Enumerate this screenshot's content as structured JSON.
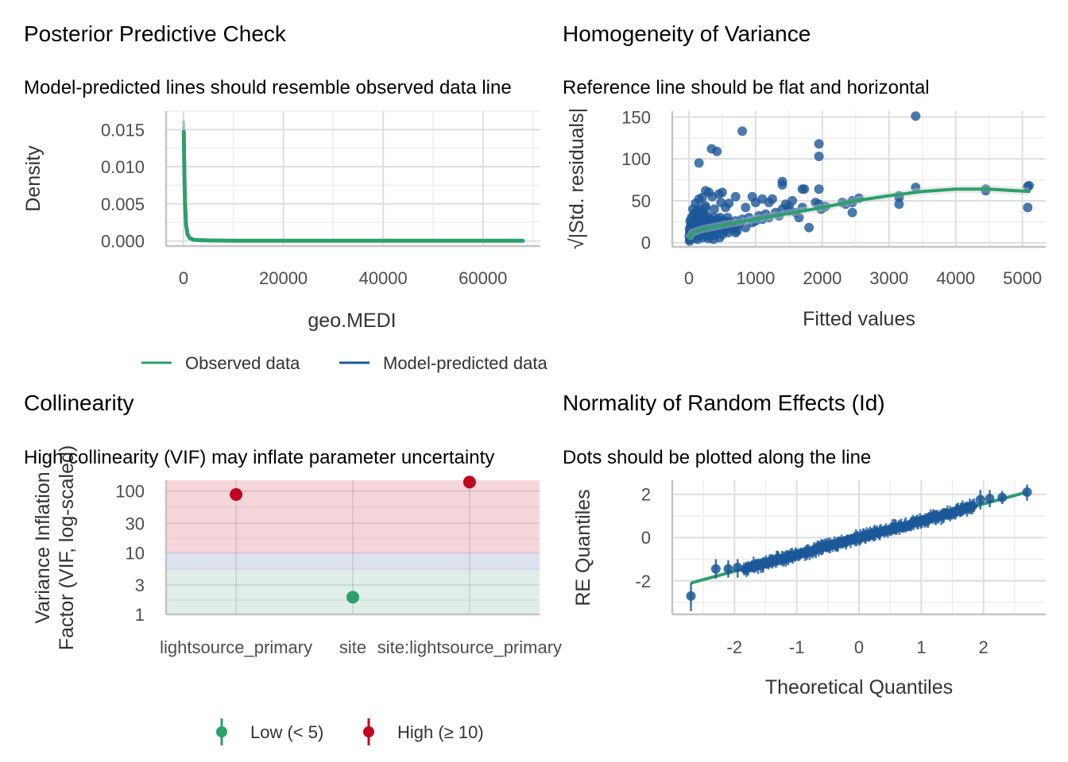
{
  "figure": {
    "colors": {
      "observed": "#2ca06b",
      "predicted": "#1b5898",
      "low": "#2ca06b",
      "moderate": "#1b5898",
      "high": "#c0061f",
      "band_high": "#f5d7db",
      "band_moderate": "#dde3ee",
      "band_low": "#dfefe7"
    }
  },
  "chart_data": [
    {
      "id": "ppc",
      "type": "line",
      "title": "Posterior Predictive Check",
      "subtitle": "Model-predicted lines should resemble observed data line",
      "xlabel": "geo.MEDI",
      "ylabel": "Density",
      "xlim": [
        -3500,
        71500
      ],
      "ylim": [
        -0.0007,
        0.0175
      ],
      "x_ticks": [
        0,
        20000,
        40000,
        60000
      ],
      "x_tick_labels": [
        "0",
        "20000",
        "40000",
        "60000"
      ],
      "y_ticks": [
        0.0,
        0.005,
        0.01,
        0.015
      ],
      "y_tick_labels": [
        "0.000",
        "0.005",
        "0.010",
        "0.015"
      ],
      "grid": true,
      "legend": {
        "position": "bottom",
        "entries": [
          "Observed data",
          "Model-predicted data"
        ]
      },
      "series": [
        {
          "name": "Observed data",
          "x": [
            0,
            50,
            100,
            200,
            300,
            500,
            800,
            1200,
            2000,
            3000,
            5000,
            10000,
            20000,
            40000,
            60000,
            68000
          ],
          "y": [
            0.0147,
            0.0147,
            0.012,
            0.008,
            0.005,
            0.0022,
            0.0009,
            0.0004,
            0.00015,
            0.0001,
            6e-05,
            3e-05,
            2e-05,
            2e-05,
            2e-05,
            2e-05
          ]
        },
        {
          "name": "Model-predicted data",
          "x": [
            0,
            50,
            100,
            200,
            300,
            500,
            800,
            1200,
            2000,
            3000,
            5000
          ],
          "y": [
            0.0162,
            0.0158,
            0.0125,
            0.0082,
            0.0051,
            0.0022,
            0.0009,
            0.0004,
            0.00015,
            0.0001,
            6e-05
          ]
        }
      ]
    },
    {
      "id": "homogeneity",
      "type": "scatter",
      "title": "Homogeneity of Variance",
      "subtitle": "Reference line should be flat and horizontal",
      "xlabel": "Fitted values",
      "ylabel": "√|Std. residuals|",
      "xlim": [
        -250,
        5350
      ],
      "ylim": [
        -5,
        157
      ],
      "x_ticks": [
        0,
        1000,
        2000,
        3000,
        4000,
        5000
      ],
      "x_tick_labels": [
        "0",
        "1000",
        "2000",
        "3000",
        "4000",
        "5000"
      ],
      "y_ticks": [
        0,
        50,
        100,
        150
      ],
      "y_tick_labels": [
        "0",
        "50",
        "100",
        "150"
      ],
      "grid": true,
      "points": [
        [
          3400,
          151
        ],
        [
          800,
          133
        ],
        [
          1950,
          118
        ],
        [
          1950,
          103
        ],
        [
          340,
          112
        ],
        [
          420,
          109
        ],
        [
          150,
          95
        ],
        [
          1400,
          73
        ],
        [
          1400,
          69
        ],
        [
          1700,
          64
        ],
        [
          1730,
          64
        ],
        [
          1950,
          64
        ],
        [
          3400,
          66
        ],
        [
          4450,
          64
        ],
        [
          4450,
          62
        ],
        [
          5080,
          67
        ],
        [
          5100,
          68
        ],
        [
          5080,
          42
        ],
        [
          3150,
          56
        ],
        [
          3150,
          54
        ],
        [
          3150,
          46
        ],
        [
          2450,
          50
        ],
        [
          2550,
          53
        ],
        [
          2450,
          48
        ],
        [
          2300,
          48
        ],
        [
          2350,
          46
        ],
        [
          2450,
          36
        ],
        [
          2050,
          43
        ],
        [
          1950,
          46
        ],
        [
          1980,
          40
        ],
        [
          1900,
          48
        ],
        [
          1800,
          18
        ],
        [
          1550,
          50
        ],
        [
          1500,
          43
        ],
        [
          1450,
          46
        ],
        [
          1400,
          40
        ],
        [
          1250,
          52
        ],
        [
          1200,
          48
        ],
        [
          1100,
          52
        ],
        [
          950,
          55
        ],
        [
          850,
          42
        ],
        [
          1000,
          48
        ],
        [
          700,
          55
        ],
        [
          600,
          47
        ],
        [
          500,
          60
        ],
        [
          450,
          58
        ],
        [
          350,
          55
        ],
        [
          300,
          60
        ],
        [
          250,
          62
        ],
        [
          200,
          54
        ],
        [
          150,
          52
        ],
        [
          100,
          47
        ],
        [
          60,
          40
        ],
        [
          140,
          28
        ],
        [
          250,
          42
        ],
        [
          550,
          42
        ],
        [
          700,
          12
        ],
        [
          480,
          48
        ],
        [
          380,
          40
        ],
        [
          90,
          35
        ],
        [
          60,
          26
        ],
        [
          40,
          17
        ],
        [
          30,
          10
        ],
        [
          20,
          5
        ],
        [
          10,
          2
        ],
        [
          25,
          20
        ],
        [
          80,
          12
        ],
        [
          120,
          18
        ],
        [
          160,
          8
        ],
        [
          200,
          15
        ],
        [
          260,
          22
        ],
        [
          300,
          12
        ],
        [
          350,
          20
        ],
        [
          400,
          16
        ],
        [
          450,
          24
        ],
        [
          500,
          10
        ],
        [
          550,
          20
        ],
        [
          600,
          25
        ],
        [
          650,
          16
        ],
        [
          700,
          26
        ],
        [
          750,
          22
        ],
        [
          800,
          28
        ],
        [
          850,
          18
        ],
        [
          900,
          30
        ],
        [
          950,
          24
        ],
        [
          1000,
          26
        ],
        [
          1050,
          32
        ],
        [
          1100,
          28
        ],
        [
          1150,
          34
        ],
        [
          1200,
          30
        ],
        [
          1300,
          36
        ],
        [
          1350,
          32
        ],
        [
          1500,
          38
        ],
        [
          1600,
          36
        ],
        [
          1650,
          30
        ],
        [
          1700,
          42
        ],
        [
          70,
          22
        ],
        [
          110,
          30
        ],
        [
          180,
          35
        ],
        [
          220,
          26
        ],
        [
          280,
          32
        ],
        [
          320,
          28
        ],
        [
          380,
          30
        ],
        [
          420,
          22
        ],
        [
          470,
          30
        ],
        [
          520,
          26
        ],
        [
          580,
          30
        ],
        [
          620,
          22
        ],
        [
          40,
          30
        ],
        [
          50,
          15
        ],
        [
          90,
          6
        ],
        [
          130,
          4
        ],
        [
          170,
          12
        ],
        [
          210,
          6
        ],
        [
          240,
          10
        ],
        [
          290,
          5
        ],
        [
          330,
          8
        ],
        [
          370,
          4
        ],
        [
          410,
          10
        ],
        [
          460,
          6
        ],
        [
          15,
          12
        ],
        [
          35,
          24
        ],
        [
          55,
          8
        ],
        [
          75,
          18
        ],
        [
          95,
          25
        ],
        [
          115,
          10
        ],
        [
          135,
          14
        ],
        [
          155,
          22
        ],
        [
          175,
          16
        ],
        [
          195,
          28
        ],
        [
          215,
          19
        ],
        [
          235,
          14
        ],
        [
          260,
          17
        ],
        [
          280,
          9
        ],
        [
          300,
          24
        ],
        [
          320,
          18
        ],
        [
          340,
          14
        ],
        [
          360,
          26
        ],
        [
          390,
          20
        ],
        [
          410,
          14
        ],
        [
          430,
          18
        ],
        [
          440,
          28
        ],
        [
          490,
          16
        ],
        [
          530,
          14
        ],
        [
          560,
          18
        ],
        [
          590,
          12
        ],
        [
          640,
          20
        ],
        [
          680,
          18
        ],
        [
          720,
          14
        ],
        [
          760,
          24
        ],
        [
          5,
          8
        ],
        [
          8,
          16
        ],
        [
          12,
          4
        ],
        [
          18,
          26
        ],
        [
          22,
          14
        ],
        [
          28,
          6
        ],
        [
          45,
          20
        ],
        [
          65,
          32
        ],
        [
          85,
          14
        ],
        [
          105,
          20
        ],
        [
          125,
          38
        ],
        [
          145,
          40
        ],
        [
          165,
          30
        ],
        [
          185,
          24
        ],
        [
          205,
          36
        ],
        [
          225,
          32
        ],
        [
          245,
          44
        ],
        [
          265,
          28
        ]
      ],
      "smooth": {
        "x": [
          0,
          50,
          200,
          500,
          1000,
          1500,
          2000,
          2500,
          3000,
          3500,
          4000,
          4500,
          5100
        ],
        "y": [
          5,
          12,
          16,
          21,
          28,
          35,
          42,
          50,
          56,
          61,
          64,
          64,
          61
        ]
      }
    },
    {
      "id": "collinearity",
      "type": "scatter",
      "title": "Collinearity",
      "subtitle": "High collinearity (VIF) may inflate parameter uncertainty",
      "xlabel": "",
      "ylabel": "Variance Inflation\nFactor (VIF, log-scaled)",
      "y_scale": "log",
      "ylim": [
        1,
        150
      ],
      "y_ticks": [
        1,
        3,
        10,
        30,
        100
      ],
      "y_tick_labels": [
        "1",
        "3",
        "10",
        "30",
        "100"
      ],
      "categories": [
        "lightsource_primary",
        "site",
        "site:lightsource_primary"
      ],
      "values": [
        88,
        1.9,
        140
      ],
      "levels": [
        "High (≥ 10)",
        "Low (< 5)",
        "High (≥ 10)"
      ],
      "bands": [
        {
          "name": "low",
          "from": 1,
          "to": 5
        },
        {
          "name": "moderate",
          "from": 5,
          "to": 10
        },
        {
          "name": "high",
          "from": 10,
          "to": 150
        }
      ],
      "grid": true,
      "legend": {
        "position": "bottom",
        "entries": [
          "Low (< 5)",
          "High (≥ 10)"
        ]
      }
    },
    {
      "id": "normality",
      "type": "scatter",
      "title": "Normality of Random Effects (Id)",
      "subtitle": "Dots should be plotted along the line",
      "xlabel": "Theoretical Quantiles",
      "ylabel": "RE Quantiles",
      "xlim": [
        -3.0,
        3.0
      ],
      "ylim": [
        -3.55,
        2.65
      ],
      "x_ticks": [
        -2,
        -1,
        0,
        1,
        2
      ],
      "x_tick_labels": [
        "-2",
        "-1",
        "0",
        "1",
        "2"
      ],
      "y_ticks": [
        -2,
        0,
        2
      ],
      "y_tick_labels": [
        "-2",
        "0",
        "2"
      ],
      "grid": true,
      "reference_line": {
        "x": [
          -2.7,
          2.7
        ],
        "y": [
          -2.1,
          2.1
        ]
      },
      "extreme_points": [
        {
          "x": -2.7,
          "y": -2.7,
          "lo": -3.4,
          "hi": -2.1
        },
        {
          "x": -2.3,
          "y": -1.45,
          "lo": -1.9,
          "hi": -1.0
        },
        {
          "x": -2.1,
          "y": -1.45,
          "lo": -1.85,
          "hi": -1.05
        },
        {
          "x": -1.95,
          "y": -1.38,
          "lo": -1.85,
          "hi": -1.0
        },
        {
          "x": 1.95,
          "y": 1.75,
          "lo": 1.3,
          "hi": 2.2
        },
        {
          "x": 2.1,
          "y": 1.8,
          "lo": 1.4,
          "hi": 2.2
        },
        {
          "x": 2.3,
          "y": 1.85,
          "lo": 1.55,
          "hi": 2.15
        },
        {
          "x": 2.7,
          "y": 2.1,
          "lo": 1.7,
          "hi": 2.45
        }
      ],
      "dense_band": {
        "x_from": -1.85,
        "x_to": 1.85,
        "n_points": 260,
        "slope": 0.78,
        "half_ci": 0.28
      }
    }
  ]
}
